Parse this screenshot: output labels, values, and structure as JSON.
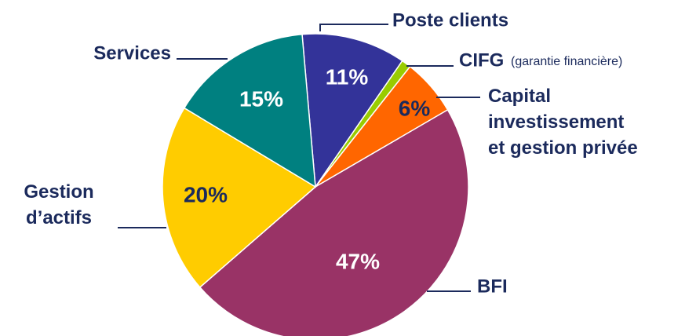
{
  "chart_data": {
    "type": "pie",
    "categories": [
      "Poste clients",
      "CIFG",
      "Capital investissement et gestion privée",
      "BFI",
      "Gestion d’actifs",
      "Services"
    ],
    "values": [
      11,
      1,
      6,
      47,
      20,
      15
    ],
    "value_labels": [
      "11%",
      null,
      "6%",
      "47%",
      "20%",
      "15%"
    ],
    "colors": [
      "#333399",
      "#99cc00",
      "#ff6600",
      "#993366",
      "#ffcc00",
      "#008080"
    ],
    "annotations": [
      "(garantie financière)"
    ]
  }
}
